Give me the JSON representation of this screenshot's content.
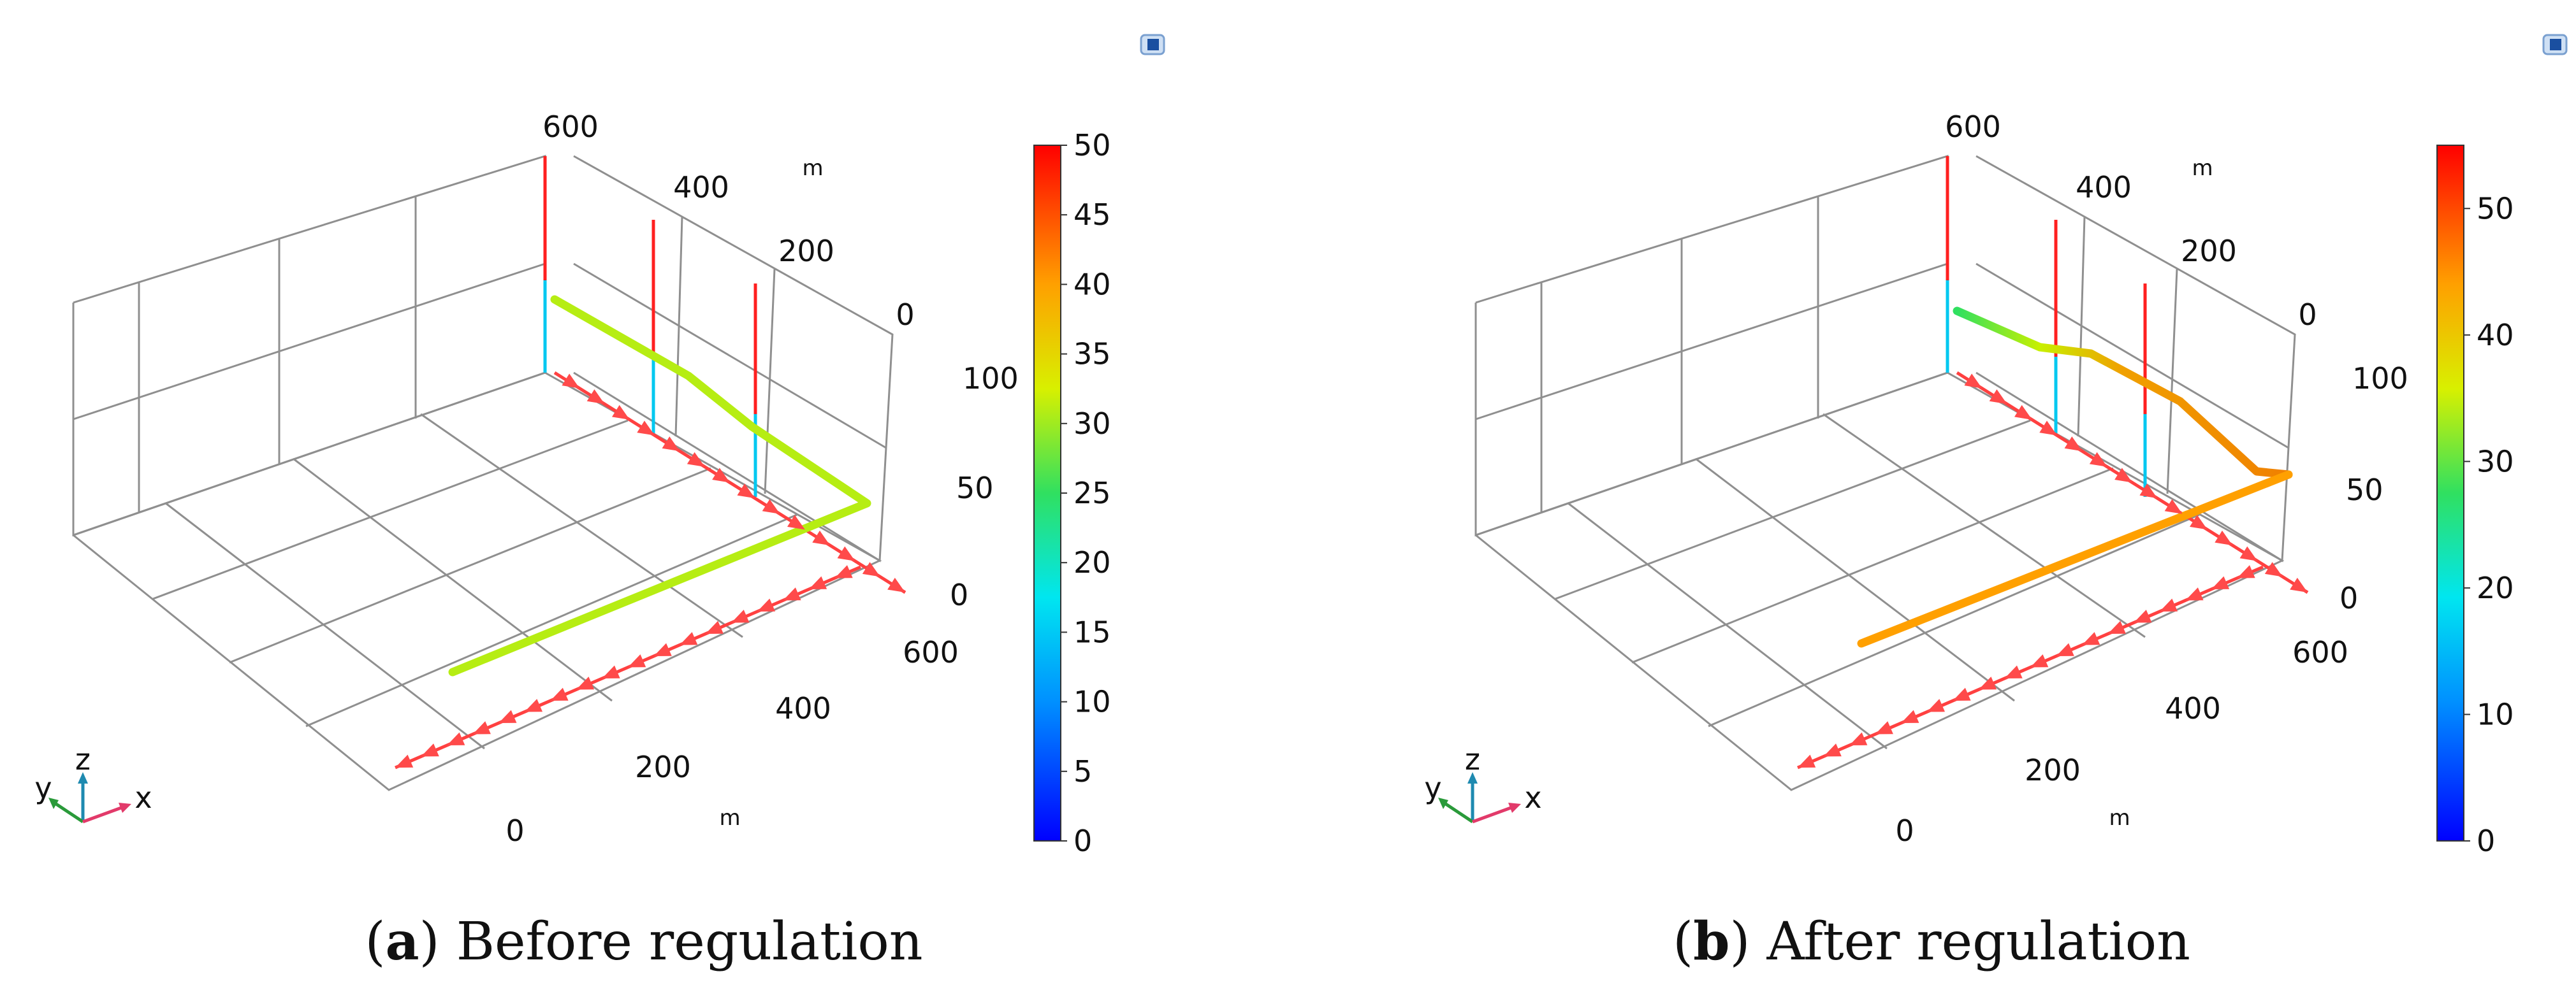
{
  "panels": [
    {
      "id": "a",
      "caption_letter": "a",
      "caption_text": " Before regulation",
      "colorbar": {
        "min": 0,
        "max": 50,
        "ticks": [
          "0",
          "5",
          "10",
          "15",
          "20",
          "25",
          "30",
          "35",
          "40",
          "45",
          "50"
        ]
      },
      "x_ticks": [
        "0",
        "200",
        "400",
        "600"
      ],
      "y_ticks": [
        "600",
        "400",
        "200",
        "0"
      ],
      "z_ticks": [
        "0",
        "50",
        "100"
      ],
      "unit_labels": [
        "m",
        "m"
      ],
      "pipe_value": 31,
      "triad": {
        "x": "x",
        "y": "y",
        "z": "z"
      }
    },
    {
      "id": "b",
      "caption_letter": "b",
      "caption_text": " After regulation",
      "colorbar": {
        "min": 0,
        "max": 55,
        "ticks": [
          "0",
          "10",
          "20",
          "30",
          "40",
          "50"
        ]
      },
      "x_ticks": [
        "0",
        "200",
        "400",
        "600"
      ],
      "y_ticks": [
        "600",
        "400",
        "200",
        "0"
      ],
      "z_ticks": [
        "0",
        "50",
        "100"
      ],
      "unit_labels": [
        "m",
        "m"
      ],
      "pipe_value": 44,
      "triad": {
        "x": "x",
        "y": "y",
        "z": "z"
      }
    }
  ],
  "icon": "comsol-logo-icon"
}
